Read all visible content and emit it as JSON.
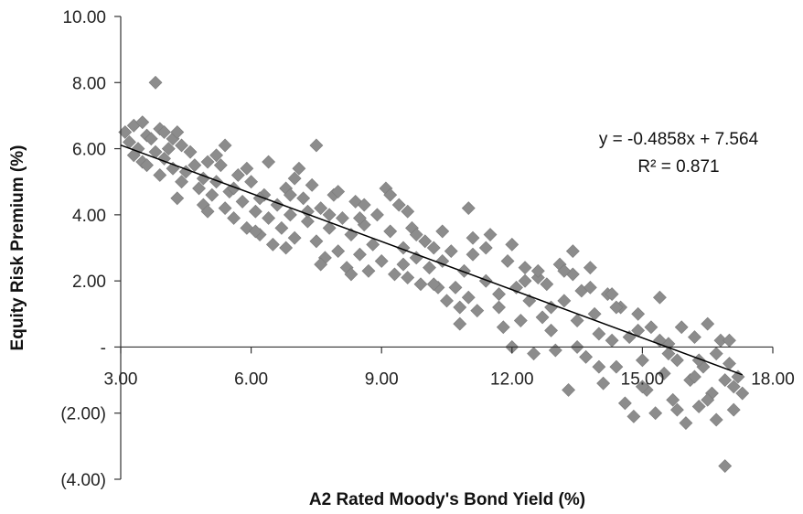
{
  "chart_data": {
    "type": "scatter",
    "title": "",
    "xlabel": "A2 Rated Moody's Bond Yield (%)",
    "ylabel": "Equity Risk Premium (%)",
    "xlim": [
      3.0,
      18.0
    ],
    "ylim": [
      -4.0,
      10.0
    ],
    "x_ticks": [
      3,
      6,
      9,
      12,
      15,
      18
    ],
    "x_tick_labels": [
      "3.00",
      "6.00",
      "9.00",
      "12.00",
      "15.00",
      "18.00"
    ],
    "y_ticks": [
      10,
      8,
      6,
      4,
      2,
      0,
      -2,
      -4
    ],
    "y_tick_labels": [
      "10.00",
      "8.00",
      "6.00",
      "4.00",
      "2.00",
      "-",
      "(2.00)",
      "(4.00)"
    ],
    "grid": false,
    "legend": "none",
    "marker": "diamond",
    "marker_color": "#8c8c8c",
    "trendline": {
      "slope": -0.4858,
      "intercept": 7.564,
      "x_range": [
        3.0,
        17.3
      ],
      "equation_label": "y = -0.4858x + 7.564",
      "r2_label": "R² = 0.871"
    },
    "series": [
      {
        "points": [
          [
            3.8,
            8.0
          ],
          [
            16.9,
            -3.6
          ],
          [
            7.5,
            6.1
          ],
          [
            5.4,
            6.1
          ],
          [
            11.0,
            4.2
          ],
          [
            3.1,
            6.5
          ],
          [
            3.3,
            6.7
          ],
          [
            3.5,
            6.8
          ],
          [
            3.6,
            6.4
          ],
          [
            3.2,
            6.2
          ],
          [
            3.4,
            6.0
          ],
          [
            3.7,
            6.3
          ],
          [
            3.9,
            6.6
          ],
          [
            4.0,
            6.5
          ],
          [
            4.2,
            6.3
          ],
          [
            4.3,
            6.5
          ],
          [
            3.3,
            5.8
          ],
          [
            3.5,
            5.6
          ],
          [
            3.8,
            5.9
          ],
          [
            4.1,
            6.0
          ],
          [
            3.6,
            5.5
          ],
          [
            3.9,
            5.2
          ],
          [
            4.0,
            5.7
          ],
          [
            4.2,
            5.4
          ],
          [
            4.4,
            5.0
          ],
          [
            4.3,
            4.5
          ],
          [
            4.5,
            5.3
          ],
          [
            4.6,
            5.9
          ],
          [
            4.7,
            5.5
          ],
          [
            4.8,
            4.8
          ],
          [
            4.9,
            5.1
          ],
          [
            5.0,
            5.6
          ],
          [
            5.1,
            4.6
          ],
          [
            5.2,
            5.0
          ],
          [
            4.9,
            4.3
          ],
          [
            5.3,
            5.5
          ],
          [
            5.4,
            4.2
          ],
          [
            5.5,
            4.7
          ],
          [
            5.6,
            3.9
          ],
          [
            5.7,
            5.2
          ],
          [
            5.8,
            4.4
          ],
          [
            5.9,
            3.6
          ],
          [
            6.0,
            5.0
          ],
          [
            6.1,
            4.1
          ],
          [
            5.9,
            5.4
          ],
          [
            6.2,
            3.4
          ],
          [
            6.3,
            4.6
          ],
          [
            6.4,
            3.9
          ],
          [
            6.5,
            3.1
          ],
          [
            6.6,
            4.3
          ],
          [
            6.7,
            3.6
          ],
          [
            6.8,
            4.8
          ],
          [
            6.9,
            4.0
          ],
          [
            7.0,
            3.3
          ],
          [
            7.1,
            5.4
          ],
          [
            7.2,
            4.5
          ],
          [
            7.3,
            3.8
          ],
          [
            7.4,
            4.9
          ],
          [
            7.5,
            3.2
          ],
          [
            7.6,
            4.2
          ],
          [
            7.7,
            2.7
          ],
          [
            7.8,
            3.6
          ],
          [
            7.9,
            4.6
          ],
          [
            8.0,
            2.9
          ],
          [
            8.1,
            3.9
          ],
          [
            8.2,
            2.4
          ],
          [
            8.3,
            3.4
          ],
          [
            8.4,
            4.4
          ],
          [
            8.5,
            2.8
          ],
          [
            8.6,
            3.7
          ],
          [
            8.7,
            2.3
          ],
          [
            8.8,
            3.1
          ],
          [
            8.9,
            4.0
          ],
          [
            9.0,
            2.6
          ],
          [
            9.1,
            4.8
          ],
          [
            9.2,
            3.5
          ],
          [
            9.3,
            2.2
          ],
          [
            9.4,
            4.3
          ],
          [
            9.5,
            3.0
          ],
          [
            9.6,
            2.1
          ],
          [
            9.7,
            3.6
          ],
          [
            9.8,
            2.7
          ],
          [
            9.9,
            1.9
          ],
          [
            10.0,
            3.2
          ],
          [
            10.1,
            2.4
          ],
          [
            10.2,
            3.0
          ],
          [
            10.3,
            1.8
          ],
          [
            10.4,
            2.6
          ],
          [
            10.5,
            1.4
          ],
          [
            10.6,
            2.9
          ],
          [
            10.7,
            1.8
          ],
          [
            10.8,
            0.7
          ],
          [
            10.9,
            2.3
          ],
          [
            11.0,
            1.5
          ],
          [
            11.1,
            2.8
          ],
          [
            11.2,
            1.1
          ],
          [
            11.4,
            2.0
          ],
          [
            11.5,
            3.4
          ],
          [
            11.7,
            1.6
          ],
          [
            11.8,
            0.6
          ],
          [
            11.9,
            2.6
          ],
          [
            12.0,
            0.0
          ],
          [
            12.1,
            1.8
          ],
          [
            12.2,
            0.8
          ],
          [
            12.3,
            2.4
          ],
          [
            12.4,
            1.4
          ],
          [
            12.5,
            -0.2
          ],
          [
            12.6,
            2.1
          ],
          [
            12.7,
            0.9
          ],
          [
            12.8,
            1.9
          ],
          [
            12.9,
            1.2
          ],
          [
            13.0,
            -0.1
          ],
          [
            13.1,
            2.5
          ],
          [
            13.2,
            1.4
          ],
          [
            13.3,
            -1.3
          ],
          [
            13.4,
            2.9
          ],
          [
            13.5,
            0.8
          ],
          [
            13.6,
            1.7
          ],
          [
            13.7,
            -0.3
          ],
          [
            13.8,
            2.4
          ],
          [
            13.9,
            1.0
          ],
          [
            14.0,
            0.4
          ],
          [
            14.1,
            -1.1
          ],
          [
            14.2,
            1.6
          ],
          [
            14.3,
            0.2
          ],
          [
            14.4,
            -0.6
          ],
          [
            14.5,
            1.2
          ],
          [
            14.6,
            -1.7
          ],
          [
            14.7,
            0.3
          ],
          [
            14.8,
            -2.1
          ],
          [
            14.9,
            1.0
          ],
          [
            15.0,
            -0.4
          ],
          [
            15.1,
            -1.3
          ],
          [
            15.2,
            0.6
          ],
          [
            15.3,
            -2.0
          ],
          [
            15.4,
            1.5
          ],
          [
            15.5,
            -0.8
          ],
          [
            15.6,
            0.1
          ],
          [
            15.7,
            -1.6
          ],
          [
            15.8,
            -0.4
          ],
          [
            15.9,
            0.6
          ],
          [
            16.0,
            -2.3
          ],
          [
            16.1,
            -1.0
          ],
          [
            16.2,
            0.3
          ],
          [
            16.3,
            -1.8
          ],
          [
            16.4,
            -0.6
          ],
          [
            16.5,
            0.7
          ],
          [
            16.6,
            -1.4
          ],
          [
            16.7,
            -2.2
          ],
          [
            16.8,
            0.2
          ],
          [
            16.9,
            -1.0
          ],
          [
            17.0,
            -0.5
          ],
          [
            17.1,
            -1.9
          ],
          [
            17.2,
            -0.9
          ],
          [
            17.3,
            -1.4
          ],
          [
            6.4,
            5.6
          ],
          [
            7.0,
            5.1
          ],
          [
            7.3,
            4.1
          ],
          [
            8.0,
            4.7
          ],
          [
            8.5,
            3.9
          ],
          [
            9.2,
            4.6
          ],
          [
            9.8,
            3.4
          ],
          [
            11.4,
            3.0
          ],
          [
            12.0,
            3.1
          ],
          [
            12.6,
            2.3
          ],
          [
            13.4,
            2.2
          ],
          [
            13.8,
            1.8
          ],
          [
            14.3,
            1.6
          ],
          [
            14.9,
            0.5
          ],
          [
            15.6,
            -0.2
          ],
          [
            16.2,
            -0.9
          ],
          [
            16.7,
            -0.2
          ],
          [
            5.0,
            4.1
          ],
          [
            5.6,
            4.8
          ],
          [
            6.1,
            3.5
          ],
          [
            6.8,
            3.0
          ],
          [
            7.6,
            2.5
          ],
          [
            8.3,
            2.2
          ],
          [
            9.5,
            2.5
          ],
          [
            10.2,
            1.9
          ],
          [
            10.8,
            1.2
          ],
          [
            11.7,
            1.2
          ],
          [
            12.9,
            0.5
          ],
          [
            13.5,
            0.0
          ],
          [
            14.0,
            -0.6
          ],
          [
            15.0,
            -1.2
          ],
          [
            15.8,
            -1.9
          ],
          [
            16.5,
            -1.6
          ],
          [
            17.1,
            -1.2
          ],
          [
            4.4,
            6.1
          ],
          [
            5.2,
            5.8
          ],
          [
            6.2,
            4.5
          ],
          [
            6.9,
            4.6
          ],
          [
            7.8,
            4.0
          ],
          [
            8.6,
            4.3
          ],
          [
            9.6,
            4.1
          ],
          [
            10.4,
            3.5
          ],
          [
            11.1,
            3.3
          ],
          [
            12.3,
            2.0
          ],
          [
            13.2,
            2.3
          ],
          [
            14.4,
            1.2
          ],
          [
            15.4,
            0.2
          ],
          [
            16.3,
            -0.4
          ],
          [
            17.0,
            0.2
          ]
        ]
      }
    ]
  }
}
